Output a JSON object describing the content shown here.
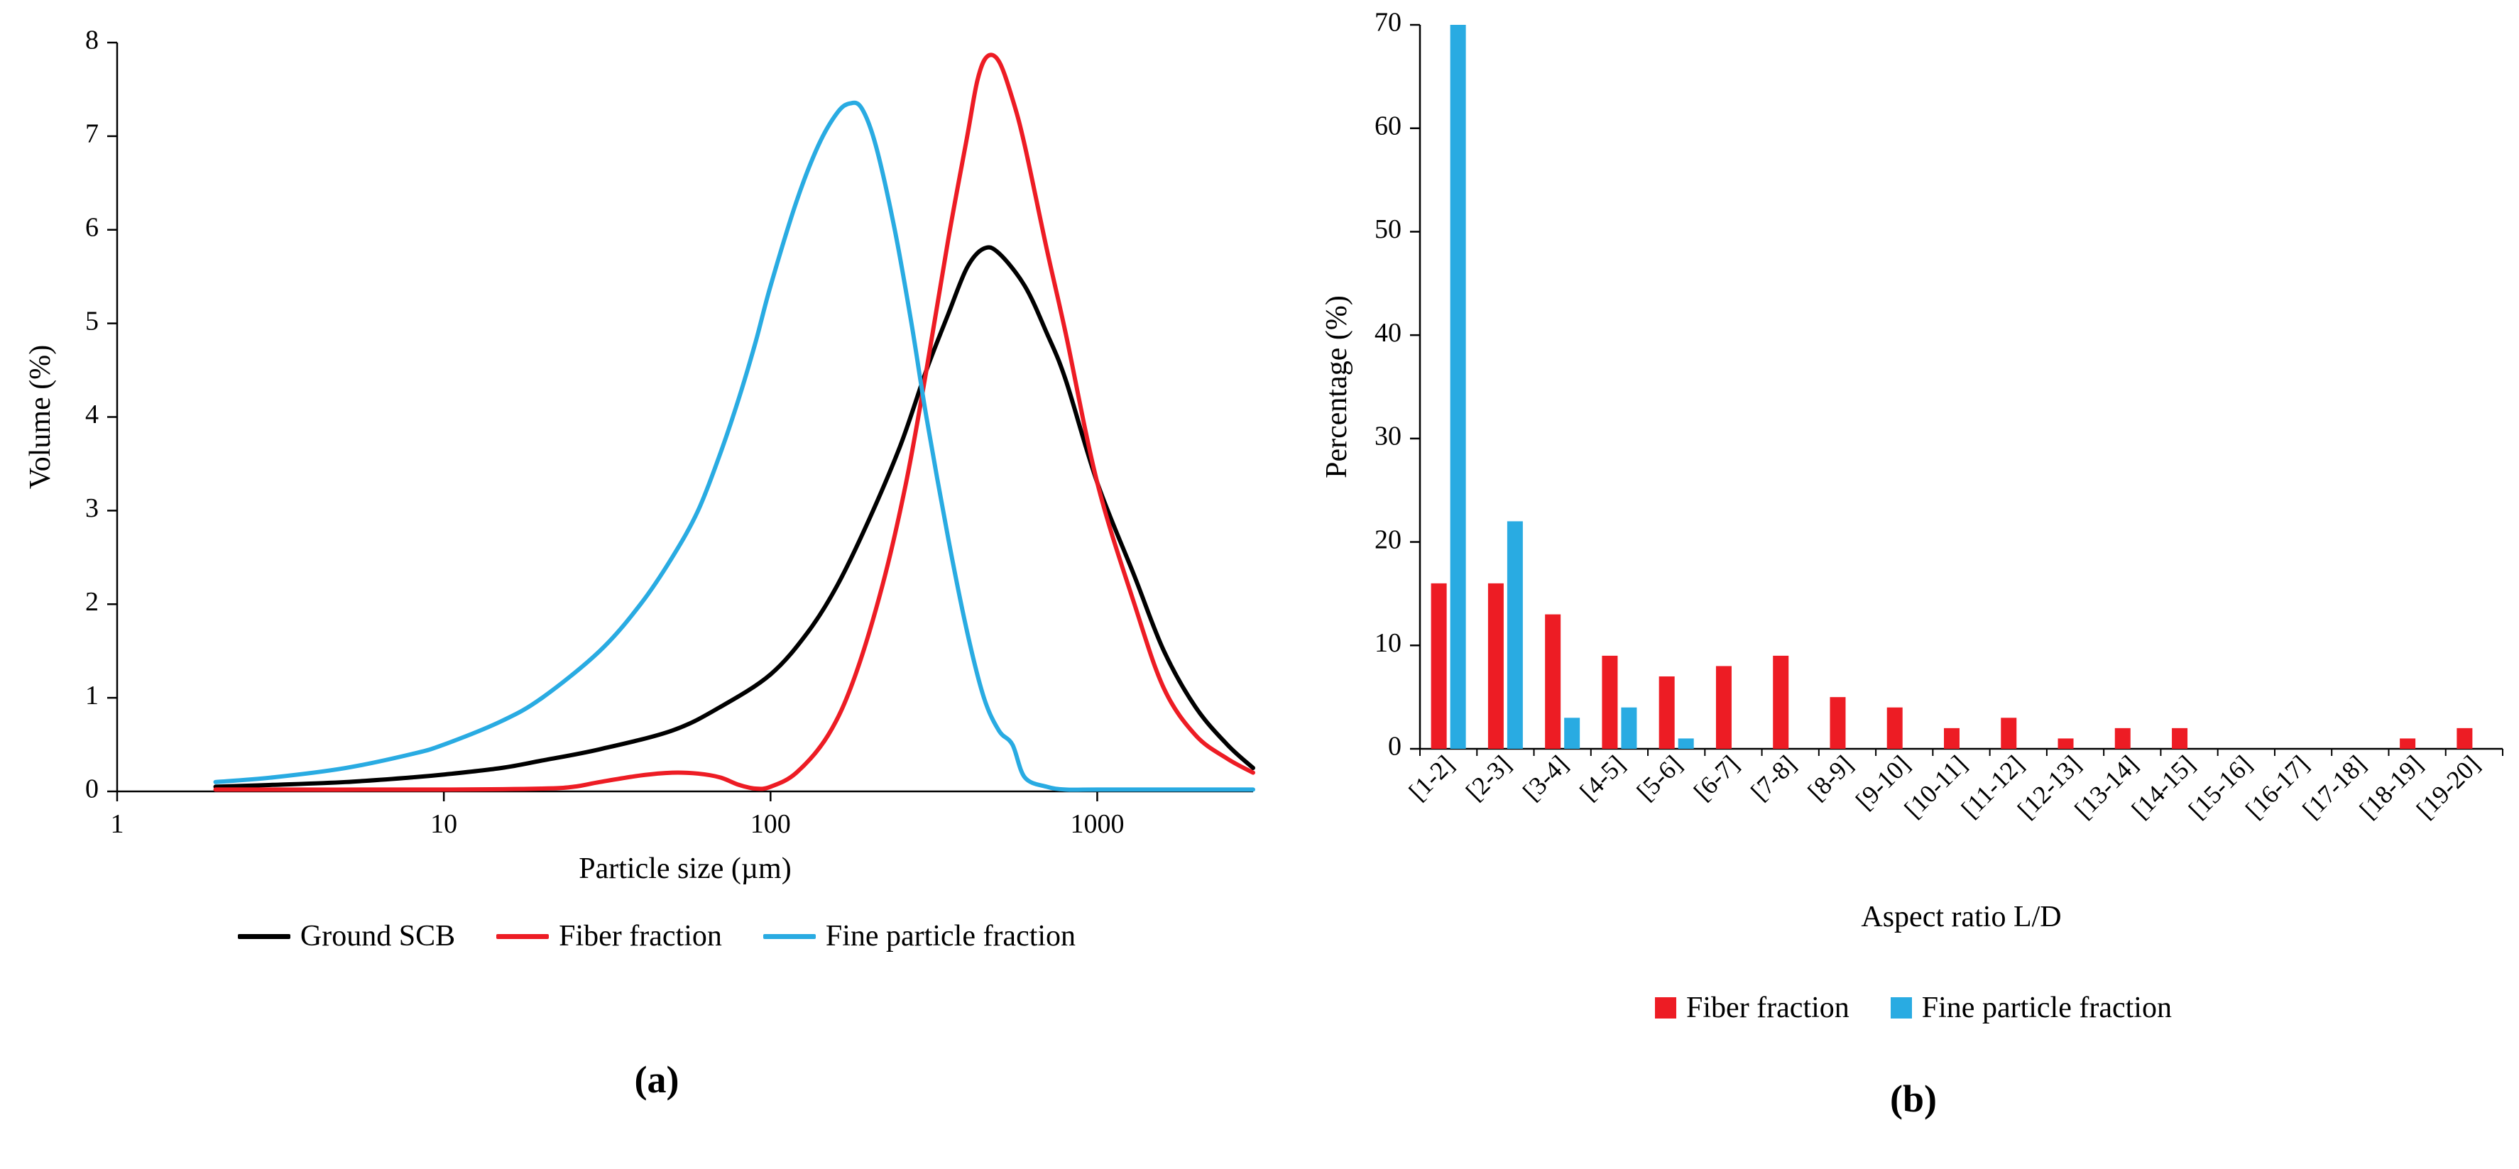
{
  "chart_data": [
    {
      "type": "line",
      "panel_label": "(a)",
      "xlabel": "Particle size (µm)",
      "ylabel": "Volume (%)",
      "x_scale": "log",
      "xlim": [
        1,
        3000
      ],
      "ylim": [
        0,
        8
      ],
      "xticks": [
        1,
        10,
        100,
        1000
      ],
      "yticks": [
        0,
        1,
        2,
        3,
        4,
        5,
        6,
        7,
        8
      ],
      "grid": false,
      "legend_position": "bottom",
      "series": [
        {
          "name": "Ground SCB",
          "color": "#000000",
          "points": [
            [
              2,
              0.05
            ],
            [
              3,
              0.07
            ],
            [
              5,
              0.1
            ],
            [
              8,
              0.15
            ],
            [
              10,
              0.18
            ],
            [
              15,
              0.25
            ],
            [
              20,
              0.33
            ],
            [
              30,
              0.45
            ],
            [
              50,
              0.65
            ],
            [
              70,
              0.9
            ],
            [
              100,
              1.25
            ],
            [
              130,
              1.7
            ],
            [
              160,
              2.2
            ],
            [
              200,
              2.9
            ],
            [
              250,
              3.7
            ],
            [
              300,
              4.5
            ],
            [
              350,
              5.1
            ],
            [
              400,
              5.6
            ],
            [
              450,
              5.8
            ],
            [
              500,
              5.75
            ],
            [
              600,
              5.4
            ],
            [
              700,
              4.9
            ],
            [
              800,
              4.4
            ],
            [
              1000,
              3.3
            ],
            [
              1300,
              2.3
            ],
            [
              1600,
              1.5
            ],
            [
              2000,
              0.9
            ],
            [
              2500,
              0.5
            ],
            [
              3000,
              0.25
            ]
          ]
        },
        {
          "name": "Fiber fraction",
          "color": "#ED1C24",
          "points": [
            [
              2,
              0.02
            ],
            [
              10,
              0.02
            ],
            [
              20,
              0.03
            ],
            [
              25,
              0.05
            ],
            [
              30,
              0.1
            ],
            [
              40,
              0.17
            ],
            [
              50,
              0.2
            ],
            [
              60,
              0.19
            ],
            [
              70,
              0.15
            ],
            [
              80,
              0.07
            ],
            [
              90,
              0.03
            ],
            [
              100,
              0.05
            ],
            [
              120,
              0.2
            ],
            [
              150,
              0.6
            ],
            [
              180,
              1.2
            ],
            [
              220,
              2.2
            ],
            [
              260,
              3.3
            ],
            [
              300,
              4.5
            ],
            [
              350,
              5.9
            ],
            [
              400,
              7.0
            ],
            [
              430,
              7.6
            ],
            [
              460,
              7.85
            ],
            [
              500,
              7.8
            ],
            [
              550,
              7.4
            ],
            [
              600,
              6.9
            ],
            [
              700,
              5.8
            ],
            [
              800,
              4.9
            ],
            [
              1000,
              3.3
            ],
            [
              1300,
              2.0
            ],
            [
              1600,
              1.1
            ],
            [
              2000,
              0.6
            ],
            [
              2500,
              0.35
            ],
            [
              3000,
              0.2
            ]
          ]
        },
        {
          "name": "Fine particle fraction",
          "color": "#29ABE2",
          "points": [
            [
              2,
              0.1
            ],
            [
              3,
              0.15
            ],
            [
              5,
              0.25
            ],
            [
              8,
              0.4
            ],
            [
              10,
              0.5
            ],
            [
              15,
              0.75
            ],
            [
              20,
              1.0
            ],
            [
              30,
              1.5
            ],
            [
              40,
              2.0
            ],
            [
              50,
              2.5
            ],
            [
              60,
              3.0
            ],
            [
              70,
              3.6
            ],
            [
              80,
              4.2
            ],
            [
              90,
              4.8
            ],
            [
              100,
              5.4
            ],
            [
              120,
              6.3
            ],
            [
              140,
              6.9
            ],
            [
              160,
              7.25
            ],
            [
              175,
              7.35
            ],
            [
              190,
              7.3
            ],
            [
              210,
              6.9
            ],
            [
              240,
              6.0
            ],
            [
              270,
              5.0
            ],
            [
              300,
              4.0
            ],
            [
              350,
              2.7
            ],
            [
              400,
              1.7
            ],
            [
              450,
              1.0
            ],
            [
              500,
              0.65
            ],
            [
              550,
              0.5
            ],
            [
              600,
              0.15
            ],
            [
              700,
              0.05
            ],
            [
              800,
              0.02
            ],
            [
              1000,
              0.02
            ],
            [
              2000,
              0.02
            ],
            [
              3000,
              0.02
            ]
          ]
        }
      ]
    },
    {
      "type": "bar",
      "panel_label": "(b)",
      "xlabel": "Aspect ratio L/D",
      "ylabel": "Percentage (%)",
      "ylim": [
        0,
        70
      ],
      "yticks": [
        0,
        10,
        20,
        30,
        40,
        50,
        60,
        70
      ],
      "grid": false,
      "legend_position": "bottom",
      "categories": [
        "[1-2]",
        "[2-3]",
        "[3-4]",
        "[4-5]",
        "[5-6]",
        "[6-7]",
        "[7-8]",
        "[8-9]",
        "[9-10]",
        "[10-11]",
        "[11-12]",
        "[12-13]",
        "[13-14]",
        "[14-15]",
        "[15-16]",
        "[16-17]",
        "[17-18]",
        "[18-19]",
        "[19-20]"
      ],
      "series": [
        {
          "name": "Fiber fraction",
          "color": "#ED1C24",
          "values": [
            16,
            16,
            13,
            9,
            7,
            8,
            9,
            5,
            4,
            2,
            3,
            1,
            2,
            2,
            0,
            0,
            0,
            1,
            2
          ]
        },
        {
          "name": "Fine particle fraction",
          "color": "#29ABE2",
          "values": [
            70,
            22,
            3,
            4,
            1,
            0,
            0,
            0,
            0,
            0,
            0,
            0,
            0,
            0,
            0,
            0,
            0,
            0,
            0
          ]
        }
      ]
    }
  ]
}
